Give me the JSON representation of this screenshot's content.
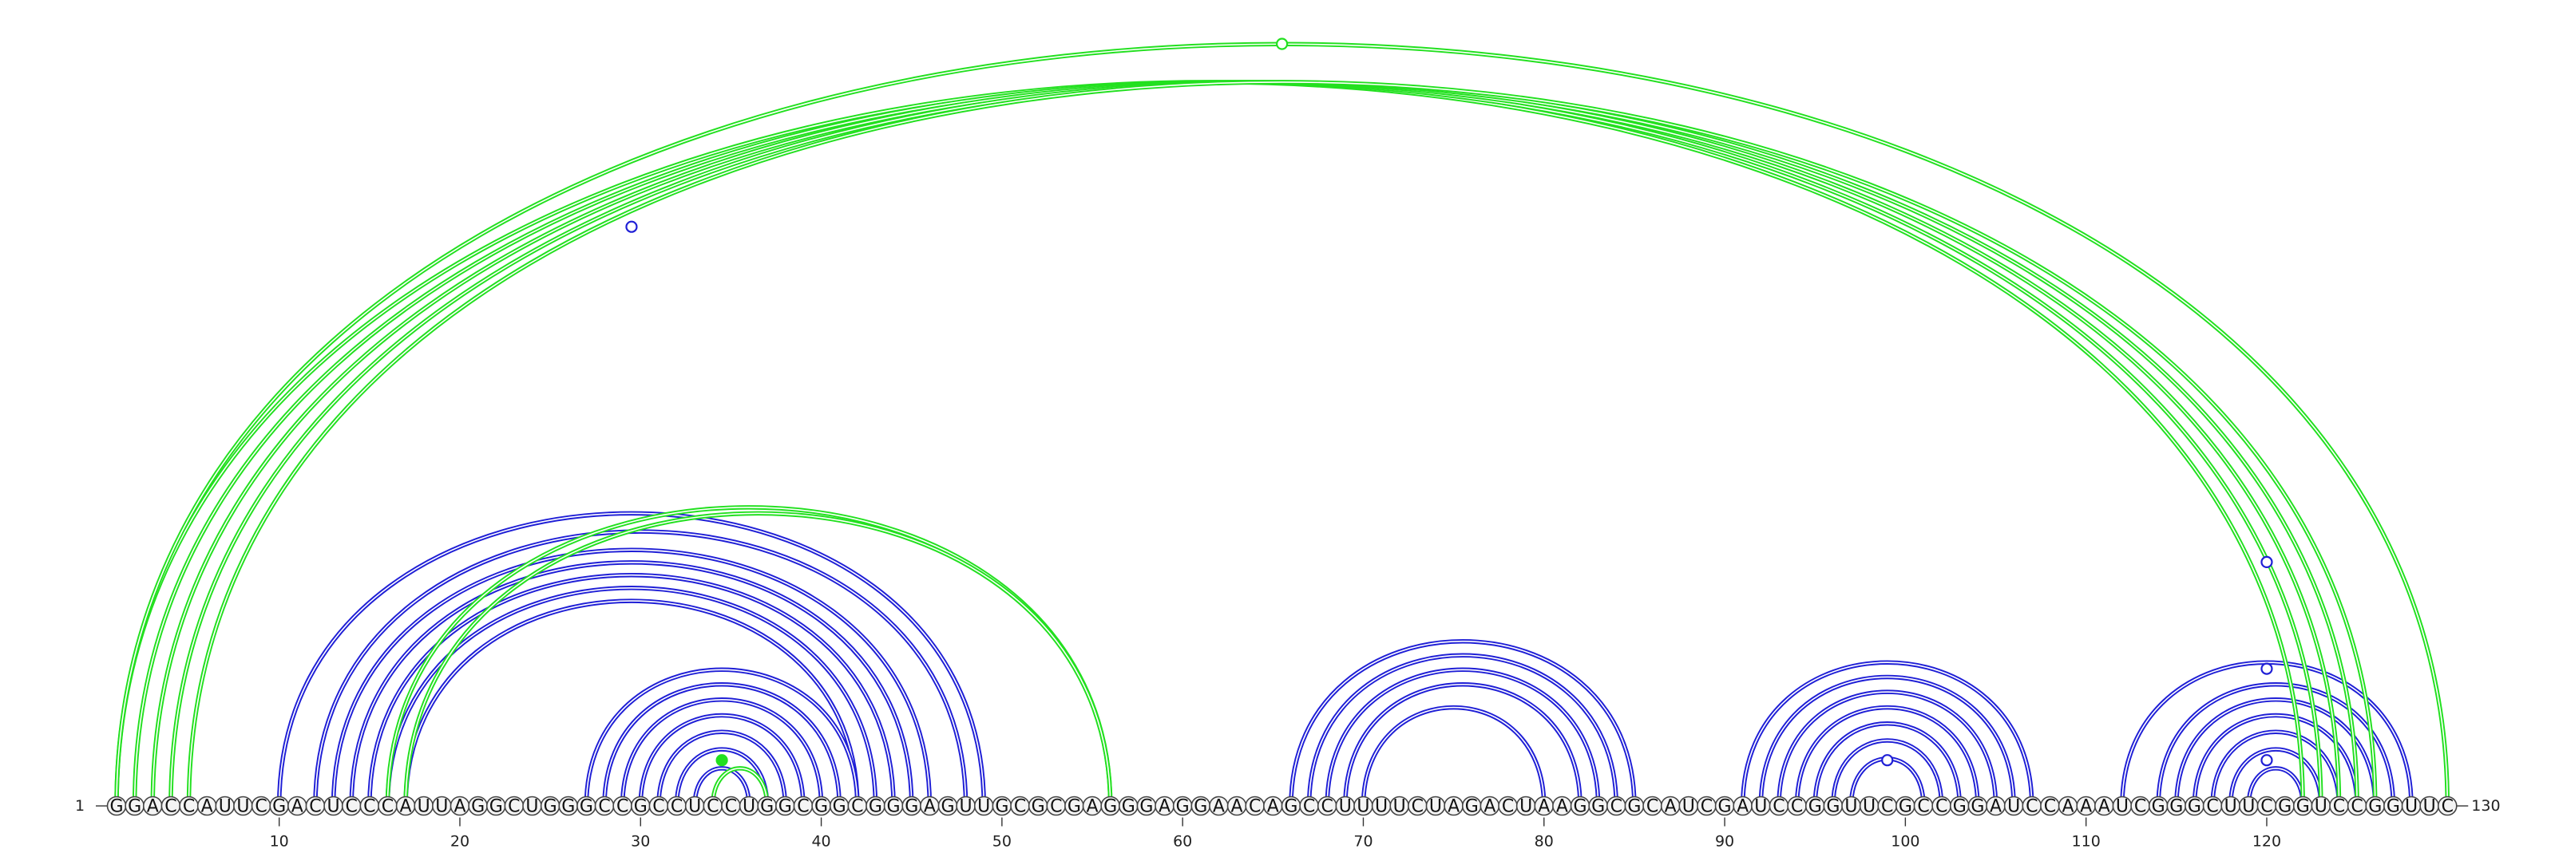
{
  "sequence": "GGACCAUUCGACUCCCAUUAGGCUGGGCCGCCUCCUGGCGGCGGGAGUUGCGCGAGGGAGGAACAGCCUUUUCUAGACUAAGGCGCAUCGAUCCGGUUCGCCGGAUCCAAAUCGGGCUUCGGUCCGGUUC",
  "start_label": "1",
  "end_label": "130",
  "ticks": [
    10,
    20,
    30,
    40,
    50,
    60,
    70,
    80,
    90,
    100,
    110,
    120
  ],
  "colors": {
    "blue": "#1f1fd6",
    "green": "#22e01f",
    "line": "#444444"
  },
  "blue_arcs": [
    [
      10,
      49
    ],
    [
      12,
      48
    ],
    [
      13,
      46
    ],
    [
      14,
      45
    ],
    [
      15,
      44
    ],
    [
      16,
      43
    ],
    [
      17,
      42
    ],
    [
      27,
      42
    ],
    [
      28,
      41
    ],
    [
      29,
      40
    ],
    [
      30,
      39
    ],
    [
      31,
      38
    ],
    [
      32,
      37
    ],
    [
      33,
      36
    ],
    [
      66,
      85
    ],
    [
      67,
      84
    ],
    [
      68,
      83
    ],
    [
      69,
      82
    ],
    [
      70,
      80
    ],
    [
      91,
      107
    ],
    [
      92,
      106
    ],
    [
      93,
      105
    ],
    [
      94,
      104
    ],
    [
      95,
      103
    ],
    [
      96,
      102
    ],
    [
      97,
      101
    ],
    [
      112,
      128
    ],
    [
      114,
      127
    ],
    [
      115,
      126
    ],
    [
      116,
      125
    ],
    [
      117,
      124
    ],
    [
      118,
      123
    ],
    [
      119,
      122
    ]
  ],
  "green_arcs": [
    [
      1,
      122
    ],
    [
      2,
      123
    ],
    [
      3,
      124
    ],
    [
      4,
      125
    ],
    [
      5,
      126
    ],
    [
      1,
      130
    ],
    [
      16,
      56
    ],
    [
      17,
      56
    ],
    [
      34,
      37
    ]
  ],
  "markers": [
    {
      "kind": "blue-open",
      "nuc": 29.5,
      "height": 0.76
    },
    {
      "kind": "green-open",
      "nuc": 65.5,
      "height": 1.0
    },
    {
      "kind": "green-filled",
      "nuc": 34.5,
      "height": 0.06
    },
    {
      "kind": "blue-open",
      "nuc": 99,
      "height": 0.06
    },
    {
      "kind": "blue-open",
      "nuc": 120,
      "height": 0.06
    },
    {
      "kind": "blue-open",
      "nuc": 120,
      "height": 0.18
    },
    {
      "kind": "blue-open",
      "nuc": 120,
      "height": 0.32
    }
  ]
}
